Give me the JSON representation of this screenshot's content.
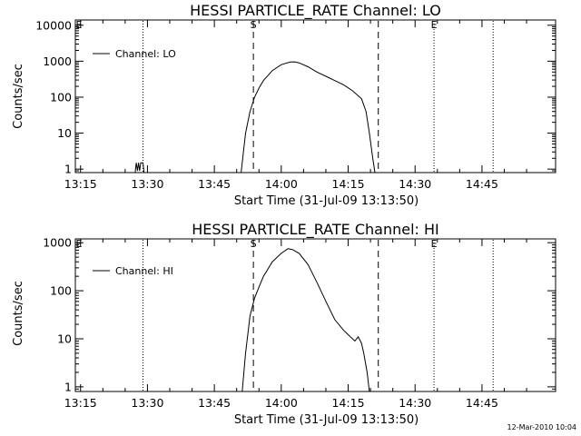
{
  "footer_timestamp": "12-Mar-2010 10:04",
  "colors": {
    "background": "#ffffff",
    "foreground": "#000000"
  },
  "chart_data": [
    {
      "type": "line",
      "title": "HESSI PARTICLE_RATE Channel: LO",
      "xlabel": "Start Time (31-Jul-09 13:13:50)",
      "ylabel": "Counts/sec",
      "yscale": "log",
      "xlim": [
        "13:13:50",
        "15:01:30"
      ],
      "ylim": [
        0.8,
        14000
      ],
      "xticks": [
        "13:15",
        "13:30",
        "13:45",
        "14:00",
        "14:15",
        "14:30",
        "14:45"
      ],
      "xtick_minutes": [
        795,
        810,
        825,
        840,
        855,
        870,
        885
      ],
      "yticks": [
        "1",
        "10",
        "100",
        "1000",
        "10000"
      ],
      "ytick_values": [
        1,
        10,
        100,
        1000,
        10000
      ],
      "legend": {
        "position": "top-left",
        "entries": [
          "Channel: LO"
        ]
      },
      "vlines": [
        {
          "style": "dotted",
          "time": "13:29:00"
        },
        {
          "style": "dashed",
          "time": "13:53:45",
          "label": "S"
        },
        {
          "style": "dashed",
          "time": "14:21:45"
        },
        {
          "style": "dotted",
          "time": "14:34:15",
          "label": "E"
        },
        {
          "style": "dotted",
          "time": "14:47:30"
        }
      ],
      "corner_label": "E",
      "series": [
        {
          "name": "Channel: LO",
          "segments": [
            [
              [
                "13:27:15",
                0.8
              ],
              [
                "13:27:30",
                1.5
              ],
              [
                "13:27:45",
                0.9
              ],
              [
                "13:28:00",
                1.5
              ],
              [
                "13:28:15",
                0.9
              ],
              [
                "13:28:30",
                1.5
              ],
              [
                "13:29:00",
                1.5
              ],
              [
                "13:29:15",
                0.8
              ]
            ],
            [
              [
                "13:51:00",
                0.8
              ],
              [
                "13:52:00",
                10
              ],
              [
                "13:53:00",
                40
              ],
              [
                "13:54:00",
                100
              ],
              [
                "13:55:00",
                180
              ],
              [
                "13:56:00",
                290
              ],
              [
                "13:58:00",
                550
              ],
              [
                "14:00:00",
                800
              ],
              [
                "14:02:00",
                950
              ],
              [
                "14:03:00",
                960
              ],
              [
                "14:04:00",
                900
              ],
              [
                "14:06:00",
                700
              ],
              [
                "14:08:00",
                500
              ],
              [
                "14:10:00",
                380
              ],
              [
                "14:12:00",
                290
              ],
              [
                "14:14:00",
                220
              ],
              [
                "14:16:00",
                150
              ],
              [
                "14:18:00",
                90
              ],
              [
                "14:19:00",
                40
              ],
              [
                "14:19:45",
                10
              ],
              [
                "14:20:30",
                2
              ],
              [
                "14:21:00",
                0.8
              ]
            ]
          ]
        }
      ]
    },
    {
      "type": "line",
      "title": "HESSI PARTICLE_RATE Channel: HI",
      "xlabel": "Start Time (31-Jul-09 13:13:50)",
      "ylabel": "Counts/sec",
      "yscale": "log",
      "xlim": [
        "13:13:50",
        "15:01:30"
      ],
      "ylim": [
        0.8,
        1200
      ],
      "xticks": [
        "13:15",
        "13:30",
        "13:45",
        "14:00",
        "14:15",
        "14:30",
        "14:45"
      ],
      "xtick_minutes": [
        795,
        810,
        825,
        840,
        855,
        870,
        885
      ],
      "yticks": [
        "1",
        "10",
        "100",
        "1000"
      ],
      "ytick_values": [
        1,
        10,
        100,
        1000
      ],
      "legend": {
        "position": "top-left",
        "entries": [
          "Channel: HI"
        ]
      },
      "vlines": [
        {
          "style": "dotted",
          "time": "13:29:00"
        },
        {
          "style": "dashed",
          "time": "13:53:45",
          "label": "S"
        },
        {
          "style": "dashed",
          "time": "14:21:45"
        },
        {
          "style": "dotted",
          "time": "14:34:15",
          "label": "E"
        },
        {
          "style": "dotted",
          "time": "14:47:30"
        }
      ],
      "corner_label": "E",
      "series": [
        {
          "name": "Channel: HI",
          "segments": [
            [
              [
                "13:51:15",
                0.8
              ],
              [
                "13:52:00",
                5
              ],
              [
                "13:53:00",
                30
              ],
              [
                "13:54:00",
                70
              ],
              [
                "13:55:00",
                120
              ],
              [
                "13:56:00",
                200
              ],
              [
                "13:58:00",
                400
              ],
              [
                "14:00:00",
                600
              ],
              [
                "14:01:30",
                750
              ],
              [
                "14:02:30",
                720
              ],
              [
                "14:04:00",
                600
              ],
              [
                "14:06:00",
                350
              ],
              [
                "14:08:00",
                150
              ],
              [
                "14:10:00",
                60
              ],
              [
                "14:12:00",
                25
              ],
              [
                "14:14:00",
                15
              ],
              [
                "14:15:30",
                11
              ],
              [
                "14:16:30",
                9
              ],
              [
                "14:17:15",
                11
              ],
              [
                "14:18:00",
                8
              ],
              [
                "14:18:30",
                5
              ],
              [
                "14:19:15",
                2
              ],
              [
                "14:19:45",
                0.8
              ]
            ]
          ]
        }
      ]
    }
  ]
}
